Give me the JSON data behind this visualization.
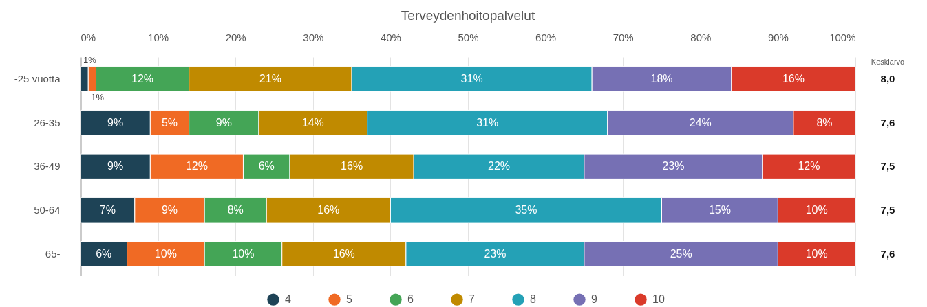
{
  "chart_data": {
    "type": "bar",
    "orientation": "horizontal",
    "stacked": true,
    "title": "Terveydenhoitopalvelut",
    "categories": [
      "-25 vuotta",
      "26-35",
      "36-49",
      "50-64",
      "65-"
    ],
    "y2label": "Keskiarvo",
    "y2_categories": [
      "8,0",
      "7,6",
      "7,5",
      "7,5",
      "7,6"
    ],
    "xlim": [
      0,
      100
    ],
    "xticks": [
      {
        "value": 0,
        "label": "0%"
      },
      {
        "value": 10,
        "label": "10%"
      },
      {
        "value": 20,
        "label": "20%"
      },
      {
        "value": 30,
        "label": "30%"
      },
      {
        "value": 40,
        "label": "40%"
      },
      {
        "value": 50,
        "label": "50%"
      },
      {
        "value": 60,
        "label": "60%"
      },
      {
        "value": 70,
        "label": "70%"
      },
      {
        "value": 80,
        "label": "80%"
      },
      {
        "value": 90,
        "label": "90%"
      },
      {
        "value": 100,
        "label": "100%"
      }
    ],
    "grid": "x",
    "legend": "bottom",
    "series": [
      {
        "name": "4",
        "color": "#1e4356",
        "values": [
          1,
          9,
          9,
          7,
          6
        ],
        "value_labels": [
          "1%",
          "9%",
          "9%",
          "7%",
          "6%"
        ]
      },
      {
        "name": "5",
        "color": "#f06a24",
        "values": [
          1,
          5,
          12,
          9,
          10
        ],
        "value_labels": [
          "1%",
          "5%",
          "12%",
          "9%",
          "10%"
        ]
      },
      {
        "name": "6",
        "color": "#44a556",
        "values": [
          12,
          9,
          6,
          8,
          10
        ],
        "value_labels": [
          "12%",
          "9%",
          "6%",
          "8%",
          "10%"
        ]
      },
      {
        "name": "7",
        "color": "#c08a00",
        "values": [
          21,
          14,
          16,
          16,
          16
        ],
        "value_labels": [
          "21%",
          "14%",
          "16%",
          "16%",
          "16%"
        ]
      },
      {
        "name": "8",
        "color": "#24a1b6",
        "values": [
          31,
          31,
          22,
          35,
          23
        ],
        "value_labels": [
          "31%",
          "31%",
          "22%",
          "35%",
          "23%"
        ]
      },
      {
        "name": "9",
        "color": "#7670b4",
        "values": [
          18,
          24,
          23,
          15,
          25
        ],
        "value_labels": [
          "18%",
          "24%",
          "23%",
          "15%",
          "25%"
        ]
      },
      {
        "name": "10",
        "color": "#da3a2a",
        "values": [
          16,
          8,
          12,
          10,
          10
        ],
        "value_labels": [
          "16%",
          "8%",
          "12%",
          "10%",
          "10%"
        ]
      }
    ]
  }
}
